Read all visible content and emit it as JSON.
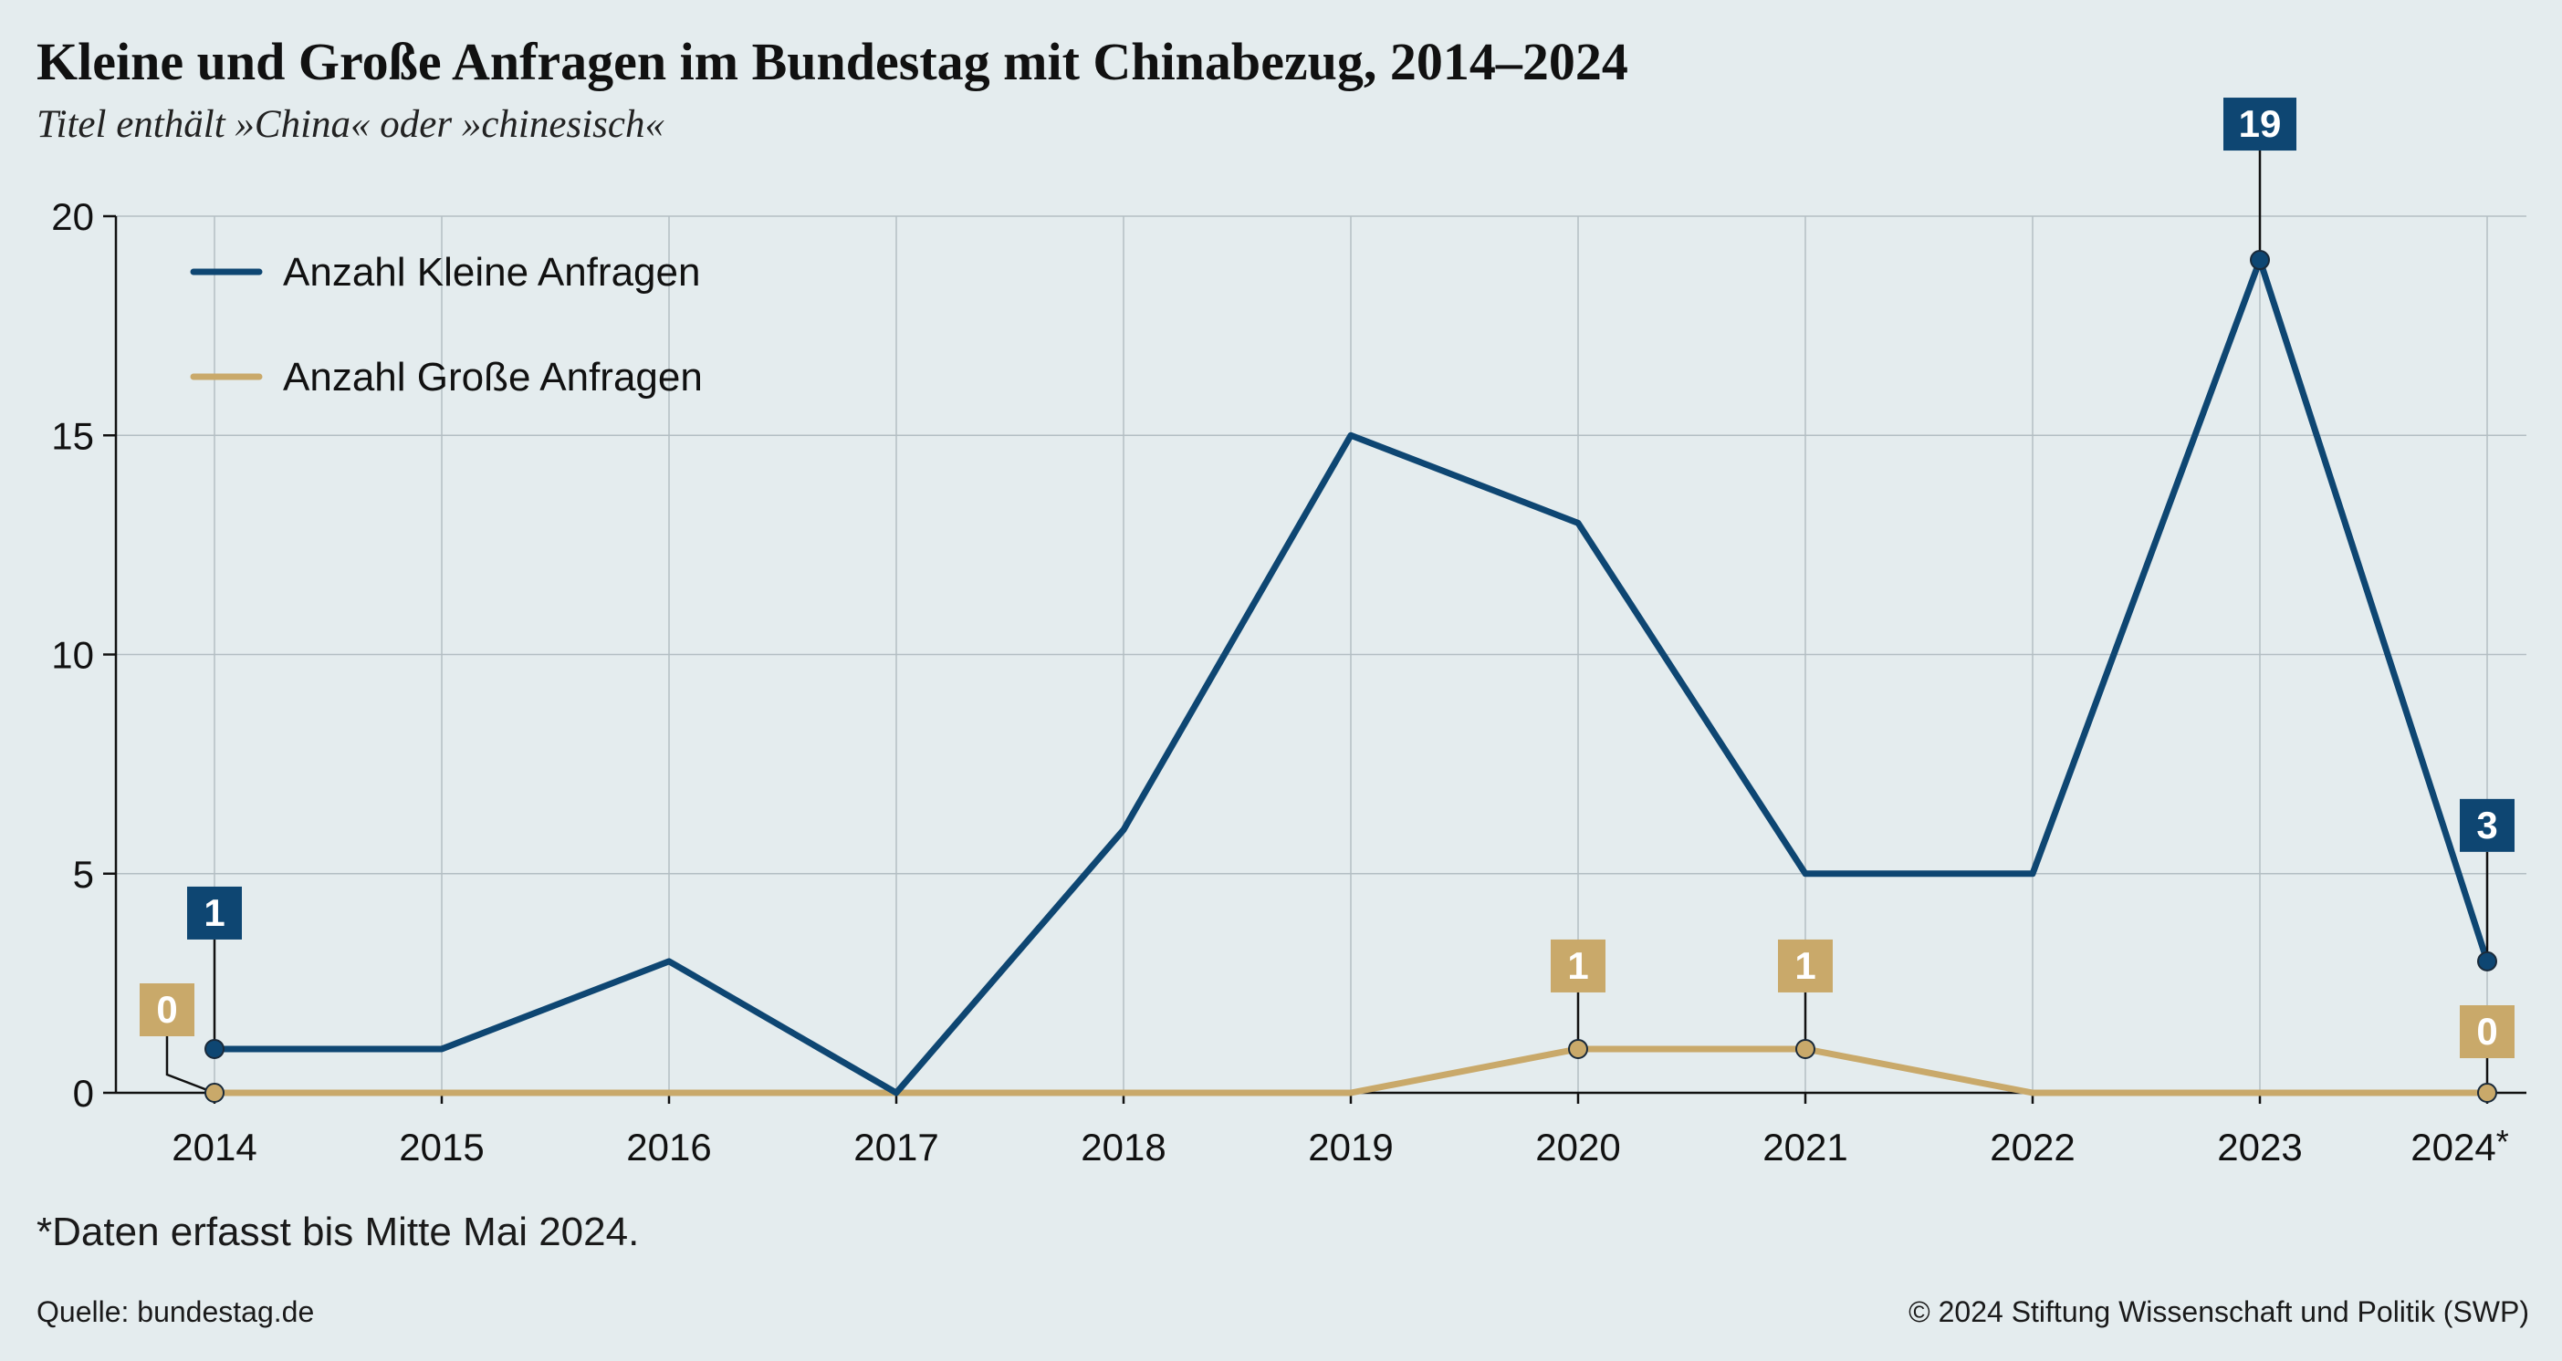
{
  "chart_data": {
    "type": "line",
    "title": "Kleine und Große Anfragen im Bundestag mit Chinabezug, 2014–2024",
    "subtitle": "Titel enthält »China« oder »chinesisch«",
    "categories": [
      "2014",
      "2015",
      "2016",
      "2017",
      "2018",
      "2019",
      "2020",
      "2021",
      "2022",
      "2023",
      "2024*"
    ],
    "series": [
      {
        "name": "Anzahl Kleine Anfragen",
        "color": "#0e4672",
        "values": [
          1,
          1,
          3,
          0,
          6,
          15,
          13,
          5,
          5,
          19,
          3
        ]
      },
      {
        "name": "Anzahl Große Anfragen",
        "color": "#c9a96a",
        "values": [
          0,
          0,
          0,
          0,
          0,
          0,
          1,
          1,
          0,
          0,
          0
        ]
      }
    ],
    "annotations": [
      {
        "series": 0,
        "index": 0,
        "label": "1"
      },
      {
        "series": 0,
        "index": 9,
        "label": "19"
      },
      {
        "series": 0,
        "index": 10,
        "label": "3"
      },
      {
        "series": 1,
        "index": 0,
        "label": "0"
      },
      {
        "series": 1,
        "index": 6,
        "label": "1"
      },
      {
        "series": 1,
        "index": 7,
        "label": "1"
      },
      {
        "series": 1,
        "index": 10,
        "label": "0"
      }
    ],
    "yticks": [
      0,
      5,
      10,
      15,
      20
    ],
    "ylim": [
      0,
      20
    ],
    "grid": true,
    "legend": "top-left"
  },
  "footnote": "*Daten erfasst bis Mitte Mai 2024.",
  "source": "Quelle: bundestag.de",
  "copyright": "© 2024 Stiftung Wissenschaft und Politik (SWP)"
}
